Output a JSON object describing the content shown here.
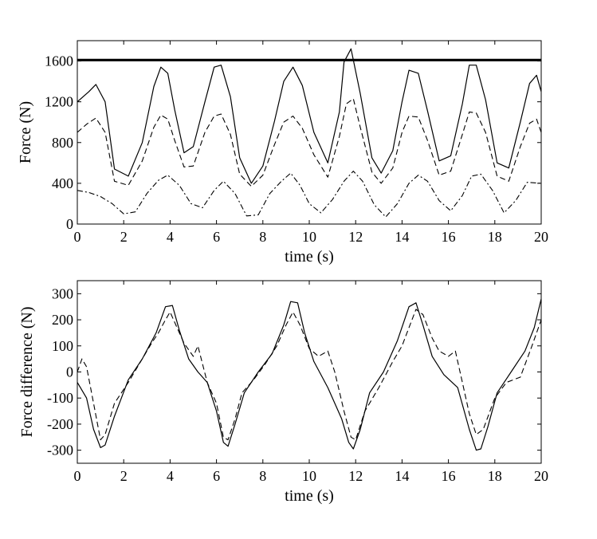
{
  "chart_data": [
    {
      "type": "line",
      "xlabel": "time (s)",
      "ylabel": "Force (N)",
      "xlim": [
        0,
        20
      ],
      "ylim": [
        0,
        1800
      ],
      "xticks": [
        0,
        2,
        4,
        6,
        8,
        10,
        12,
        14,
        16,
        18,
        20
      ],
      "xtick_labels": [
        "0",
        "2",
        "4",
        "6",
        "8",
        "10",
        "12",
        "14",
        "16",
        "18",
        "20"
      ],
      "yticks": [
        0,
        400,
        800,
        1200,
        1600
      ],
      "ytick_labels": [
        "0",
        "400",
        "800",
        "1200",
        "1600"
      ],
      "grid": false,
      "series": [
        {
          "style": "thick-solid",
          "x": [
            0,
            20
          ],
          "y": [
            1610,
            1610
          ]
        },
        {
          "style": "solid",
          "x": [
            0,
            0.5,
            0.8,
            1.2,
            1.6,
            2.2,
            2.8,
            3.3,
            3.6,
            3.9,
            4.2,
            4.6,
            5.0,
            5.5,
            5.9,
            6.2,
            6.6,
            7.0,
            7.5,
            8.0,
            8.5,
            8.9,
            9.3,
            9.7,
            10.2,
            10.8,
            11.3,
            11.5,
            11.8,
            12.2,
            12.7,
            13.1,
            13.6,
            14.0,
            14.3,
            14.7,
            15.1,
            15.6,
            16.1,
            16.6,
            16.9,
            17.2,
            17.6,
            18.1,
            18.6,
            19.1,
            19.5,
            19.8,
            20
          ],
          "y": [
            1200,
            1300,
            1370,
            1200,
            540,
            470,
            800,
            1350,
            1540,
            1480,
            1120,
            700,
            760,
            1200,
            1540,
            1560,
            1250,
            650,
            400,
            570,
            1010,
            1400,
            1540,
            1360,
            900,
            600,
            1100,
            1590,
            1720,
            1280,
            650,
            500,
            720,
            1200,
            1510,
            1480,
            1110,
            620,
            670,
            1180,
            1560,
            1560,
            1220,
            600,
            550,
            1000,
            1380,
            1460,
            1300
          ]
        },
        {
          "style": "dashed",
          "x": [
            0,
            0.4,
            0.8,
            1.2,
            1.6,
            2.2,
            2.8,
            3.3,
            3.6,
            3.9,
            4.2,
            4.6,
            5.0,
            5.5,
            5.9,
            6.2,
            6.6,
            7.0,
            7.5,
            8.0,
            8.5,
            8.9,
            9.3,
            9.7,
            10.2,
            10.8,
            11.3,
            11.6,
            11.9,
            12.2,
            12.7,
            13.1,
            13.6,
            14.0,
            14.3,
            14.7,
            15.1,
            15.6,
            16.1,
            16.6,
            16.9,
            17.2,
            17.6,
            18.1,
            18.6,
            19.1,
            19.5,
            19.8,
            20
          ],
          "y": [
            900,
            980,
            1040,
            900,
            420,
            380,
            620,
            950,
            1070,
            1030,
            820,
            560,
            570,
            900,
            1060,
            1080,
            880,
            490,
            370,
            480,
            780,
            1000,
            1060,
            940,
            680,
            460,
            860,
            1180,
            1230,
            950,
            510,
            400,
            550,
            900,
            1060,
            1050,
            820,
            480,
            520,
            880,
            1100,
            1090,
            900,
            470,
            420,
            760,
            990,
            1030,
            900
          ]
        },
        {
          "style": "dash-dot",
          "x": [
            0,
            0.5,
            1.0,
            1.5,
            2.0,
            2.5,
            3.0,
            3.5,
            3.9,
            4.4,
            4.9,
            5.4,
            5.9,
            6.3,
            6.8,
            7.3,
            7.8,
            8.3,
            8.8,
            9.2,
            9.6,
            10.0,
            10.5,
            11.0,
            11.5,
            11.9,
            12.3,
            12.8,
            13.3,
            13.8,
            14.3,
            14.7,
            15.1,
            15.6,
            16.1,
            16.6,
            17.0,
            17.4,
            17.9,
            18.4,
            18.9,
            19.4,
            20
          ],
          "y": [
            330,
            310,
            270,
            200,
            100,
            120,
            300,
            430,
            480,
            380,
            200,
            160,
            330,
            420,
            300,
            80,
            90,
            300,
            420,
            500,
            380,
            200,
            110,
            240,
            420,
            520,
            420,
            190,
            70,
            200,
            400,
            480,
            420,
            230,
            130,
            280,
            470,
            490,
            330,
            110,
            230,
            410,
            400
          ]
        }
      ]
    },
    {
      "type": "line",
      "xlabel": "time (s)",
      "ylabel": "Force difference (N)",
      "xlim": [
        0,
        20
      ],
      "ylim": [
        -350,
        350
      ],
      "xticks": [
        0,
        2,
        4,
        6,
        8,
        10,
        12,
        14,
        16,
        18,
        20
      ],
      "xtick_labels": [
        "0",
        "2",
        "4",
        "6",
        "8",
        "10",
        "12",
        "14",
        "16",
        "18",
        "20"
      ],
      "yticks": [
        -300,
        -200,
        -100,
        0,
        100,
        200,
        300
      ],
      "ytick_labels": [
        "-300",
        "-200",
        "-100",
        "0",
        "100",
        "200",
        "300"
      ],
      "grid": false,
      "series": [
        {
          "style": "solid",
          "x": [
            0,
            0.4,
            0.7,
            1.0,
            1.2,
            1.6,
            2.2,
            2.8,
            3.4,
            3.8,
            4.1,
            4.4,
            4.8,
            5.2,
            5.6,
            6.0,
            6.3,
            6.5,
            6.8,
            7.2,
            7.8,
            8.4,
            8.9,
            9.2,
            9.5,
            9.8,
            10.2,
            10.8,
            11.4,
            11.7,
            11.9,
            12.2,
            12.6,
            13.2,
            13.8,
            14.3,
            14.6,
            14.9,
            15.3,
            15.8,
            16.4,
            16.9,
            17.2,
            17.4,
            17.7,
            18.1,
            18.7,
            19.3,
            19.7,
            20
          ],
          "y": [
            -40,
            -100,
            -220,
            -290,
            -280,
            -170,
            -30,
            50,
            150,
            250,
            255,
            160,
            50,
            0,
            -40,
            -150,
            -270,
            -285,
            -200,
            -80,
            0,
            70,
            180,
            270,
            265,
            150,
            40,
            -60,
            -180,
            -270,
            -295,
            -220,
            -80,
            0,
            120,
            250,
            265,
            180,
            60,
            -10,
            -60,
            -220,
            -300,
            -295,
            -210,
            -80,
            0,
            80,
            170,
            280
          ]
        },
        {
          "style": "dashed",
          "x": [
            0,
            0.2,
            0.4,
            0.7,
            1.0,
            1.2,
            1.6,
            2.2,
            2.8,
            3.2,
            3.5,
            3.8,
            4.0,
            4.3,
            4.6,
            5.0,
            5.2,
            5.6,
            6.0,
            6.3,
            6.5,
            6.8,
            7.1,
            7.6,
            8.1,
            8.6,
            9.0,
            9.3,
            9.6,
            10.0,
            10.4,
            10.8,
            11.1,
            11.5,
            11.8,
            12.0,
            12.4,
            13.0,
            13.6,
            14.0,
            14.3,
            14.6,
            14.9,
            15.3,
            15.6,
            16.0,
            16.3,
            16.6,
            16.9,
            17.2,
            17.5,
            18.0,
            18.5,
            19.1,
            19.6,
            20
          ],
          "y": [
            0,
            50,
            20,
            -120,
            -260,
            -240,
            -120,
            -40,
            50,
            110,
            150,
            200,
            230,
            170,
            110,
            60,
            100,
            -40,
            -120,
            -250,
            -260,
            -180,
            -80,
            -30,
            30,
            100,
            180,
            230,
            180,
            90,
            60,
            80,
            0,
            -150,
            -250,
            -260,
            -150,
            -60,
            40,
            100,
            170,
            240,
            220,
            130,
            80,
            60,
            80,
            -40,
            -160,
            -240,
            -220,
            -100,
            -40,
            -20,
            100,
            200
          ]
        }
      ]
    }
  ]
}
